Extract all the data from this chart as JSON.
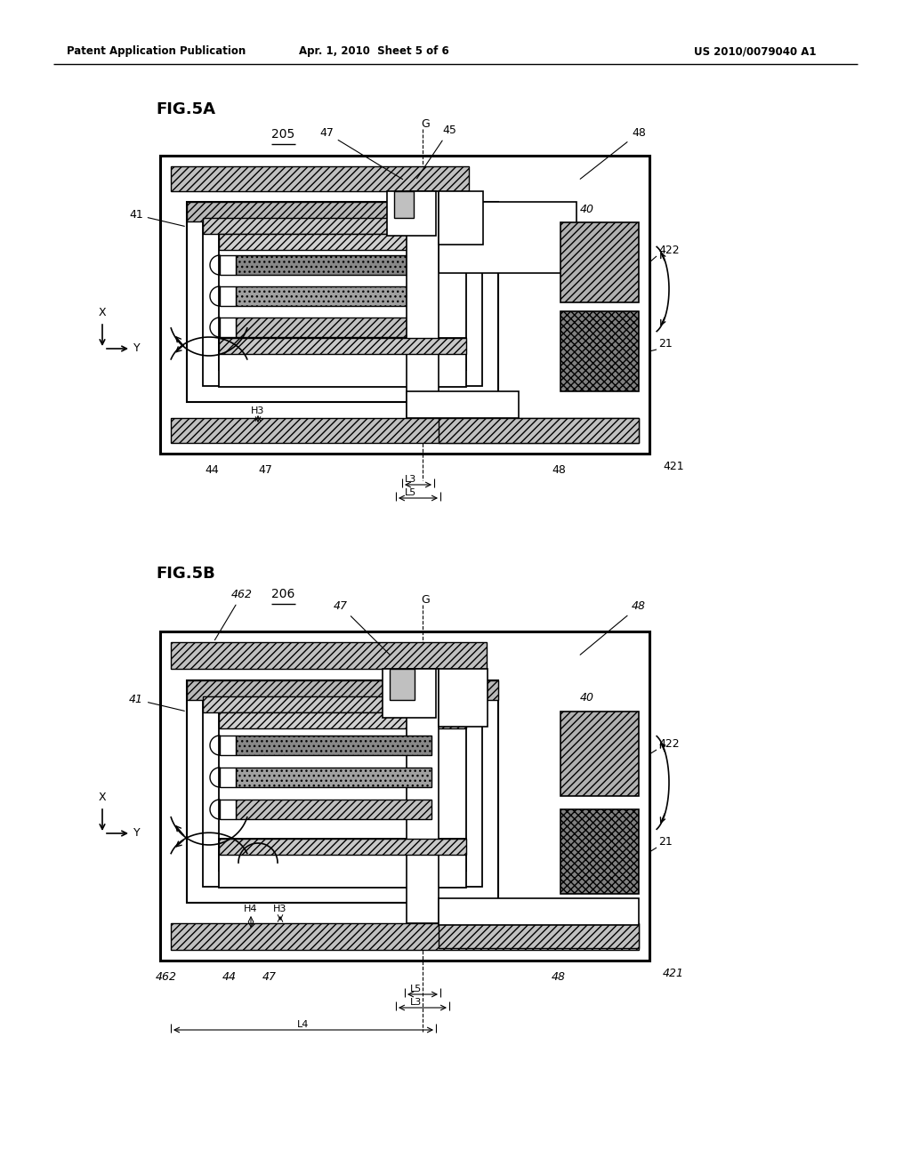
{
  "header_left": "Patent Application Publication",
  "header_mid": "Apr. 1, 2010  Sheet 5 of 6",
  "header_right": "US 2010/0079040 A1",
  "fig5a_label": "FIG.5A",
  "fig5b_label": "FIG.5B",
  "ref_205": "205",
  "ref_206": "206",
  "bg_color": "#ffffff",
  "line_color": "#000000"
}
